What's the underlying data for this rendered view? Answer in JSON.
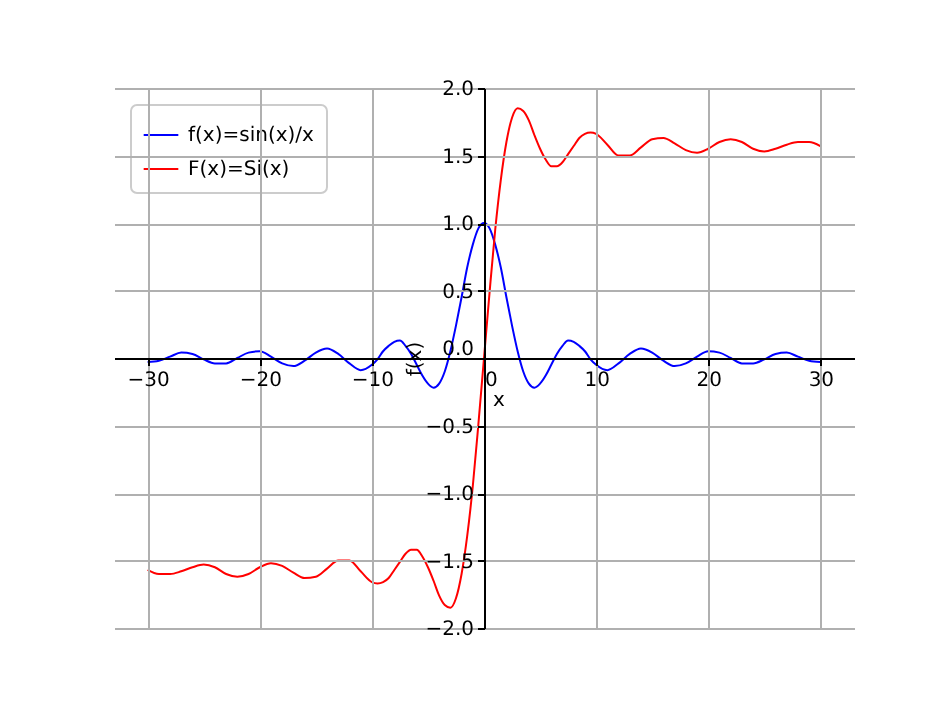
{
  "chart_data": {
    "type": "line",
    "xlabel": "x",
    "ylabel": "f(x)",
    "xlim": [
      -33,
      33
    ],
    "ylim": [
      -2,
      2
    ],
    "xticks": [
      {
        "value": -30,
        "label": "−30"
      },
      {
        "value": -20,
        "label": "−20"
      },
      {
        "value": -10,
        "label": "−10"
      },
      {
        "value": 0,
        "label": "0"
      },
      {
        "value": 10,
        "label": "10"
      },
      {
        "value": 20,
        "label": "20"
      },
      {
        "value": 30,
        "label": "30"
      }
    ],
    "yticks": [
      {
        "value": -2,
        "label": "−2.0"
      },
      {
        "value": -1.5,
        "label": "−1.5"
      },
      {
        "value": -1,
        "label": "−1.0"
      },
      {
        "value": -0.5,
        "label": "−0.5"
      },
      {
        "value": 0,
        "label": "0.0"
      },
      {
        "value": 0.5,
        "label": "0.5"
      },
      {
        "value": 1,
        "label": "1.0"
      },
      {
        "value": 1.5,
        "label": "1.5"
      },
      {
        "value": 2,
        "label": "2.0"
      }
    ],
    "grid": true,
    "legend": "top left",
    "marker": "none",
    "line_style": "solid",
    "x": [
      -30,
      -29,
      -28,
      -27,
      -26,
      -25,
      -24,
      -23,
      -22,
      -21,
      -20,
      -19,
      -18,
      -17,
      -16,
      -15,
      -14,
      -13,
      -12,
      -11,
      -10,
      -9.5,
      -9,
      -8.5,
      -8,
      -7.5,
      -7,
      -6.5,
      -6,
      -5.5,
      -5,
      -4.5,
      -4,
      -3.5,
      -3,
      -2.5,
      -2,
      -1.5,
      -1,
      -0.5,
      0,
      0.5,
      1,
      1.5,
      2,
      2.5,
      3,
      3.5,
      4,
      4.5,
      5,
      5.5,
      6,
      6.5,
      7,
      7.5,
      8,
      8.5,
      9,
      9.5,
      10,
      11,
      12,
      13,
      14,
      15,
      16,
      17,
      18,
      19,
      20,
      21,
      22,
      23,
      24,
      25,
      26,
      27,
      28,
      29,
      30
    ],
    "series": [
      {
        "name": "f(x)=sin(x)/x",
        "color": "#0000ff",
        "values": [
          -0.03,
          -0.02,
          0.01,
          0.04,
          0.03,
          -0.01,
          -0.04,
          -0.04,
          0,
          0.04,
          0.05,
          0.01,
          -0.04,
          -0.06,
          -0.02,
          0.04,
          0.07,
          0.03,
          -0.04,
          -0.09,
          -0.05,
          -0.01,
          0.05,
          0.09,
          0.12,
          0.13,
          0.09,
          0.03,
          -0.05,
          -0.13,
          -0.19,
          -0.22,
          -0.19,
          -0.1,
          0.05,
          0.24,
          0.45,
          0.67,
          0.84,
          0.96,
          1,
          0.96,
          0.84,
          0.67,
          0.45,
          0.24,
          0.05,
          -0.1,
          -0.19,
          -0.22,
          -0.19,
          -0.13,
          -0.05,
          0.03,
          0.09,
          0.13,
          0.12,
          0.09,
          0.05,
          -0.01,
          -0.05,
          -0.09,
          -0.04,
          0.03,
          0.07,
          0.04,
          -0.02,
          -0.06,
          -0.04,
          0.01,
          0.05,
          0.04,
          0,
          -0.04,
          -0.04,
          -0.01,
          0.03,
          0.04,
          0.01,
          -0.02,
          -0.03
        ]
      },
      {
        "name": "F(x)=Si(x)",
        "color": "#ff0000",
        "values": [
          -1.57,
          -1.6,
          -1.6,
          -1.58,
          -1.55,
          -1.53,
          -1.55,
          -1.6,
          -1.62,
          -1.6,
          -1.55,
          -1.52,
          -1.54,
          -1.59,
          -1.63,
          -1.62,
          -1.56,
          -1.5,
          -1.5,
          -1.58,
          -1.66,
          -1.67,
          -1.66,
          -1.63,
          -1.57,
          -1.51,
          -1.45,
          -1.42,
          -1.42,
          -1.47,
          -1.55,
          -1.65,
          -1.76,
          -1.83,
          -1.85,
          -1.78,
          -1.6,
          -1.32,
          -0.95,
          -0.49,
          0,
          0.49,
          0.95,
          1.32,
          1.6,
          1.78,
          1.85,
          1.83,
          1.76,
          1.65,
          1.55,
          1.47,
          1.42,
          1.42,
          1.45,
          1.51,
          1.57,
          1.63,
          1.66,
          1.67,
          1.66,
          1.58,
          1.5,
          1.5,
          1.56,
          1.62,
          1.63,
          1.59,
          1.54,
          1.52,
          1.55,
          1.6,
          1.62,
          1.6,
          1.55,
          1.53,
          1.55,
          1.58,
          1.6,
          1.6,
          1.57
        ]
      }
    ]
  }
}
